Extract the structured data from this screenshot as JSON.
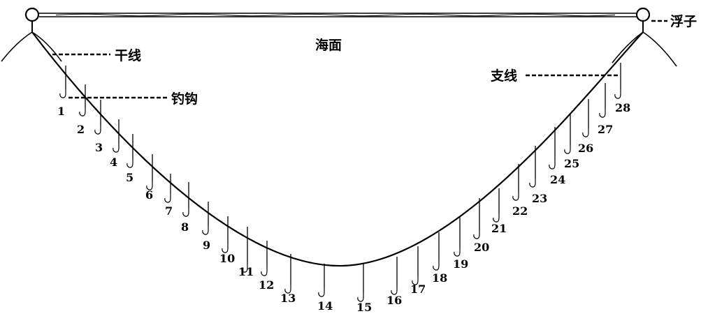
{
  "labels": {
    "sea_surface": "海面",
    "float": "浮子",
    "main_line": "干线",
    "hook": "钓钩",
    "branch_line": "支线"
  },
  "hooks": [
    "1",
    "2",
    "3",
    "4",
    "5",
    "6",
    "7",
    "8",
    "9",
    "10",
    "11",
    "12",
    "13",
    "14",
    "15",
    "16",
    "17",
    "18",
    "19",
    "20",
    "21",
    "22",
    "23",
    "24",
    "25",
    "26",
    "27",
    "28"
  ],
  "colors": {
    "line": "#000000",
    "background": "#ffffff"
  }
}
